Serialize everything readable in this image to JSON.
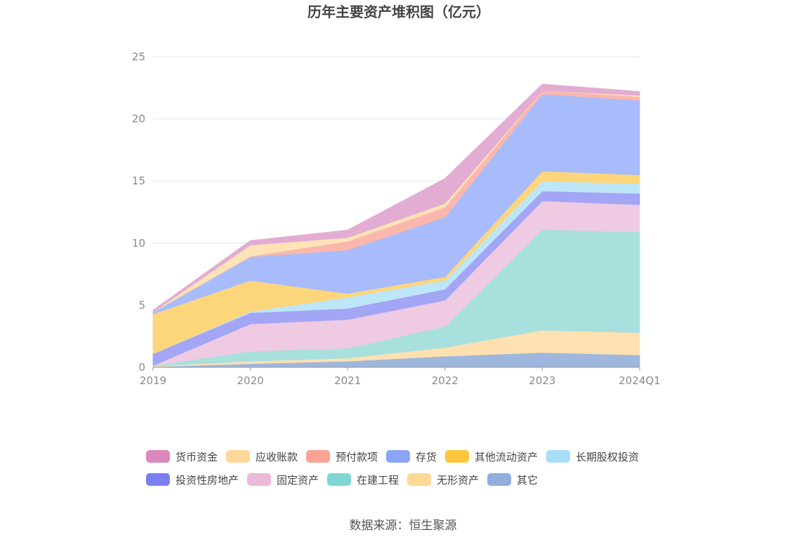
{
  "chart_data": {
    "type": "area",
    "stacked": true,
    "title": "历年主要资产堆积图（亿元）",
    "categories": [
      "2019",
      "2020",
      "2021",
      "2022",
      "2023",
      "2024Q1"
    ],
    "ylim": [
      0,
      25
    ],
    "yticks": [
      0,
      5,
      10,
      15,
      20,
      25
    ],
    "grid": true,
    "legend_position": "bottom",
    "series": [
      {
        "name": "其它",
        "color": "#9fb6dd",
        "values": [
          0.05,
          0.3,
          0.5,
          0.9,
          1.2,
          1.0
        ]
      },
      {
        "name": "无形资产",
        "color": "#fde1b0",
        "values": [
          0.05,
          0.2,
          0.25,
          0.7,
          1.8,
          1.8
        ]
      },
      {
        "name": "在建工程",
        "color": "#a8e0dd",
        "values": [
          0.05,
          0.8,
          0.8,
          1.7,
          8.1,
          8.1
        ]
      },
      {
        "name": "固定资产",
        "color": "#efcae3",
        "values": [
          0.0,
          2.2,
          2.3,
          2.1,
          2.3,
          2.2
        ]
      },
      {
        "name": "投资性房地产",
        "color": "#a3a5f5",
        "values": [
          0.95,
          0.9,
          0.9,
          0.9,
          0.8,
          0.9
        ]
      },
      {
        "name": "长期股权投资",
        "color": "#bde6f8",
        "values": [
          0.0,
          0.1,
          0.9,
          0.7,
          0.8,
          0.8
        ]
      },
      {
        "name": "其他流动资产",
        "color": "#fdd67c",
        "values": [
          3.2,
          2.5,
          0.3,
          0.3,
          0.8,
          0.7
        ]
      },
      {
        "name": "存货",
        "color": "#a8bcfc",
        "values": [
          0.15,
          1.9,
          3.5,
          4.8,
          6.2,
          6.0
        ]
      },
      {
        "name": "预付款项",
        "color": "#fbb7ae",
        "values": [
          0.0,
          0.05,
          0.7,
          0.8,
          0.3,
          0.3
        ]
      },
      {
        "name": "应收账款",
        "color": "#fde3b5",
        "values": [
          0.0,
          0.9,
          0.3,
          0.3,
          0.0,
          0.1
        ]
      },
      {
        "name": "货币资金",
        "color": "#e3acd2",
        "values": [
          0.15,
          0.35,
          0.6,
          2.0,
          0.5,
          0.3
        ]
      }
    ],
    "legend_order": [
      "货币资金",
      "应收账款",
      "预付款项",
      "存货",
      "其他流动资产",
      "长期股权投资",
      "投资性房地产",
      "固定资产",
      "在建工程",
      "无形资产",
      "其它"
    ],
    "legend_colors": {
      "货币资金": "#dc88be",
      "应收账款": "#fdd898",
      "预付款项": "#f9a295",
      "存货": "#8aa5f8",
      "其他流动资产": "#fdc63c",
      "长期股权投资": "#a6def8",
      "投资性房地产": "#7b7ff0",
      "固定资产": "#ebb9da",
      "在建工程": "#7fd6d3",
      "无形资产": "#fdd898",
      "其它": "#91aedc"
    }
  },
  "source": "数据来源：恒生聚源"
}
